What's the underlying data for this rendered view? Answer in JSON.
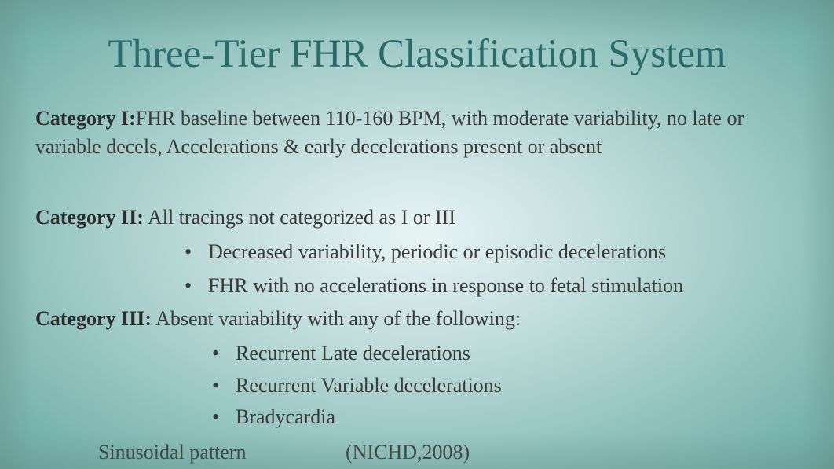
{
  "title": "Three-Tier FHR Classification System",
  "categories": {
    "cat1": {
      "label": "Category I:",
      "description": "FHR baseline between 110-160 BPM, with moderate variability, no late or variable decels, Accelerations & early decelerations present or absent"
    },
    "cat2": {
      "label": "Category II:",
      "description": " All tracings not categorized as I or III",
      "bullets": [
        "Decreased variability, periodic or episodic decelerations",
        "FHR with no accelerations in response to fetal stimulation"
      ]
    },
    "cat3": {
      "label": "Category III:",
      "description": " Absent variability with any of the following:",
      "bullets": [
        "Recurrent Late decelerations",
        "Recurrent Variable decelerations",
        "Bradycardia"
      ]
    }
  },
  "footer": {
    "text": "Sinusoidal pattern",
    "citation": "(NICHD,2008)"
  },
  "styling": {
    "title_color": "#2a6b6b",
    "title_fontsize": 51,
    "body_fontsize": 26,
    "body_color": "#3a3a3a",
    "background_gradient_center": "#e8f4f4",
    "background_gradient_edge": "#6ba8a3",
    "font_family": "Georgia, serif"
  }
}
